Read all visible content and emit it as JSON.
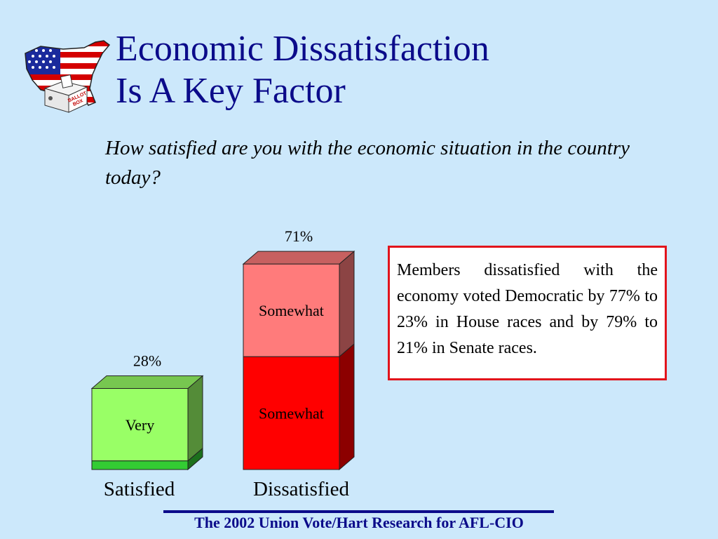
{
  "slide": {
    "title_line1": "Economic Dissatisfaction",
    "title_line2": "Is A Key Factor",
    "question": "How satisfied are you with the economic situation in the country today?",
    "callout": "Members dissatisfied with the economy voted Democratic by 77% to 23% in House races and by 79% to 21% in Senate races.",
    "footer": "The 2002 Union Vote/Hart Research for AFL-CIO",
    "logo_text_1": "BALLOT",
    "logo_text_2": "BOX"
  },
  "chart_data": {
    "type": "bar",
    "stacked": true,
    "categories": [
      "Satisfied",
      "Dissatisfied"
    ],
    "totals": [
      "28%",
      "71%"
    ],
    "total_values": [
      28,
      71
    ],
    "ylim": [
      0,
      80
    ],
    "series": [
      {
        "name": "Very",
        "values": [
          3,
          39
        ]
      },
      {
        "name": "Somewhat",
        "values": [
          25,
          32
        ]
      }
    ],
    "segment_labels": [
      [
        null,
        "Somewhat"
      ],
      [
        "Very",
        "Somewhat"
      ]
    ],
    "colors": {
      "Satisfied": {
        "Very": "#33cc33",
        "Somewhat": "#99ff66"
      },
      "Dissatisfied": {
        "Very": "#ff0000",
        "Somewhat": "#ff7b7b"
      }
    }
  }
}
